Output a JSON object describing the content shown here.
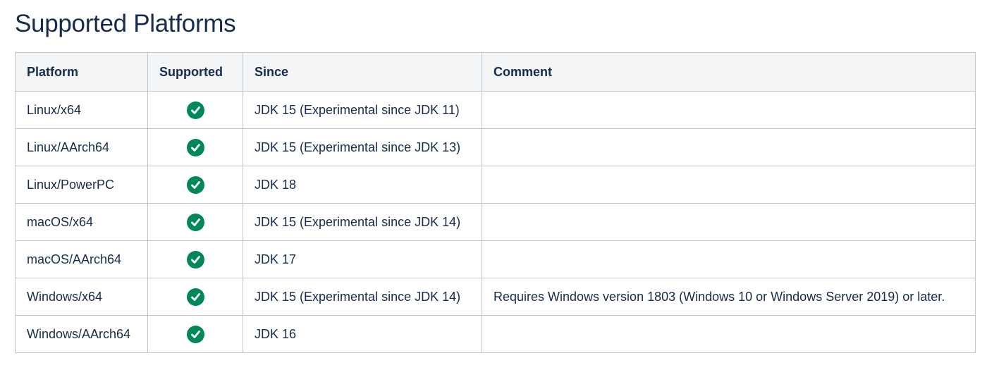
{
  "title": "Supported Platforms",
  "columns": [
    "Platform",
    "Supported",
    "Since",
    "Comment"
  ],
  "colors": {
    "check": "#00875a",
    "header_bg": "#f4f5f7",
    "border": "#c1c7d0"
  },
  "rows": [
    {
      "platform": "Linux/x64",
      "supported": true,
      "since": "JDK 15 (Experimental since JDK 11)",
      "comment": ""
    },
    {
      "platform": "Linux/AArch64",
      "supported": true,
      "since": "JDK 15 (Experimental since JDK 13)",
      "comment": ""
    },
    {
      "platform": "Linux/PowerPC",
      "supported": true,
      "since": "JDK 18",
      "comment": ""
    },
    {
      "platform": "macOS/x64",
      "supported": true,
      "since": "JDK 15 (Experimental since JDK 14)",
      "comment": ""
    },
    {
      "platform": "macOS/AArch64",
      "supported": true,
      "since": "JDK 17",
      "comment": ""
    },
    {
      "platform": "Windows/x64",
      "supported": true,
      "since": "JDK 15 (Experimental since JDK 14)",
      "comment": "Requires Windows version 1803 (Windows 10 or Windows Server 2019) or later."
    },
    {
      "platform": "Windows/AArch64",
      "supported": true,
      "since": "JDK 16",
      "comment": ""
    }
  ]
}
